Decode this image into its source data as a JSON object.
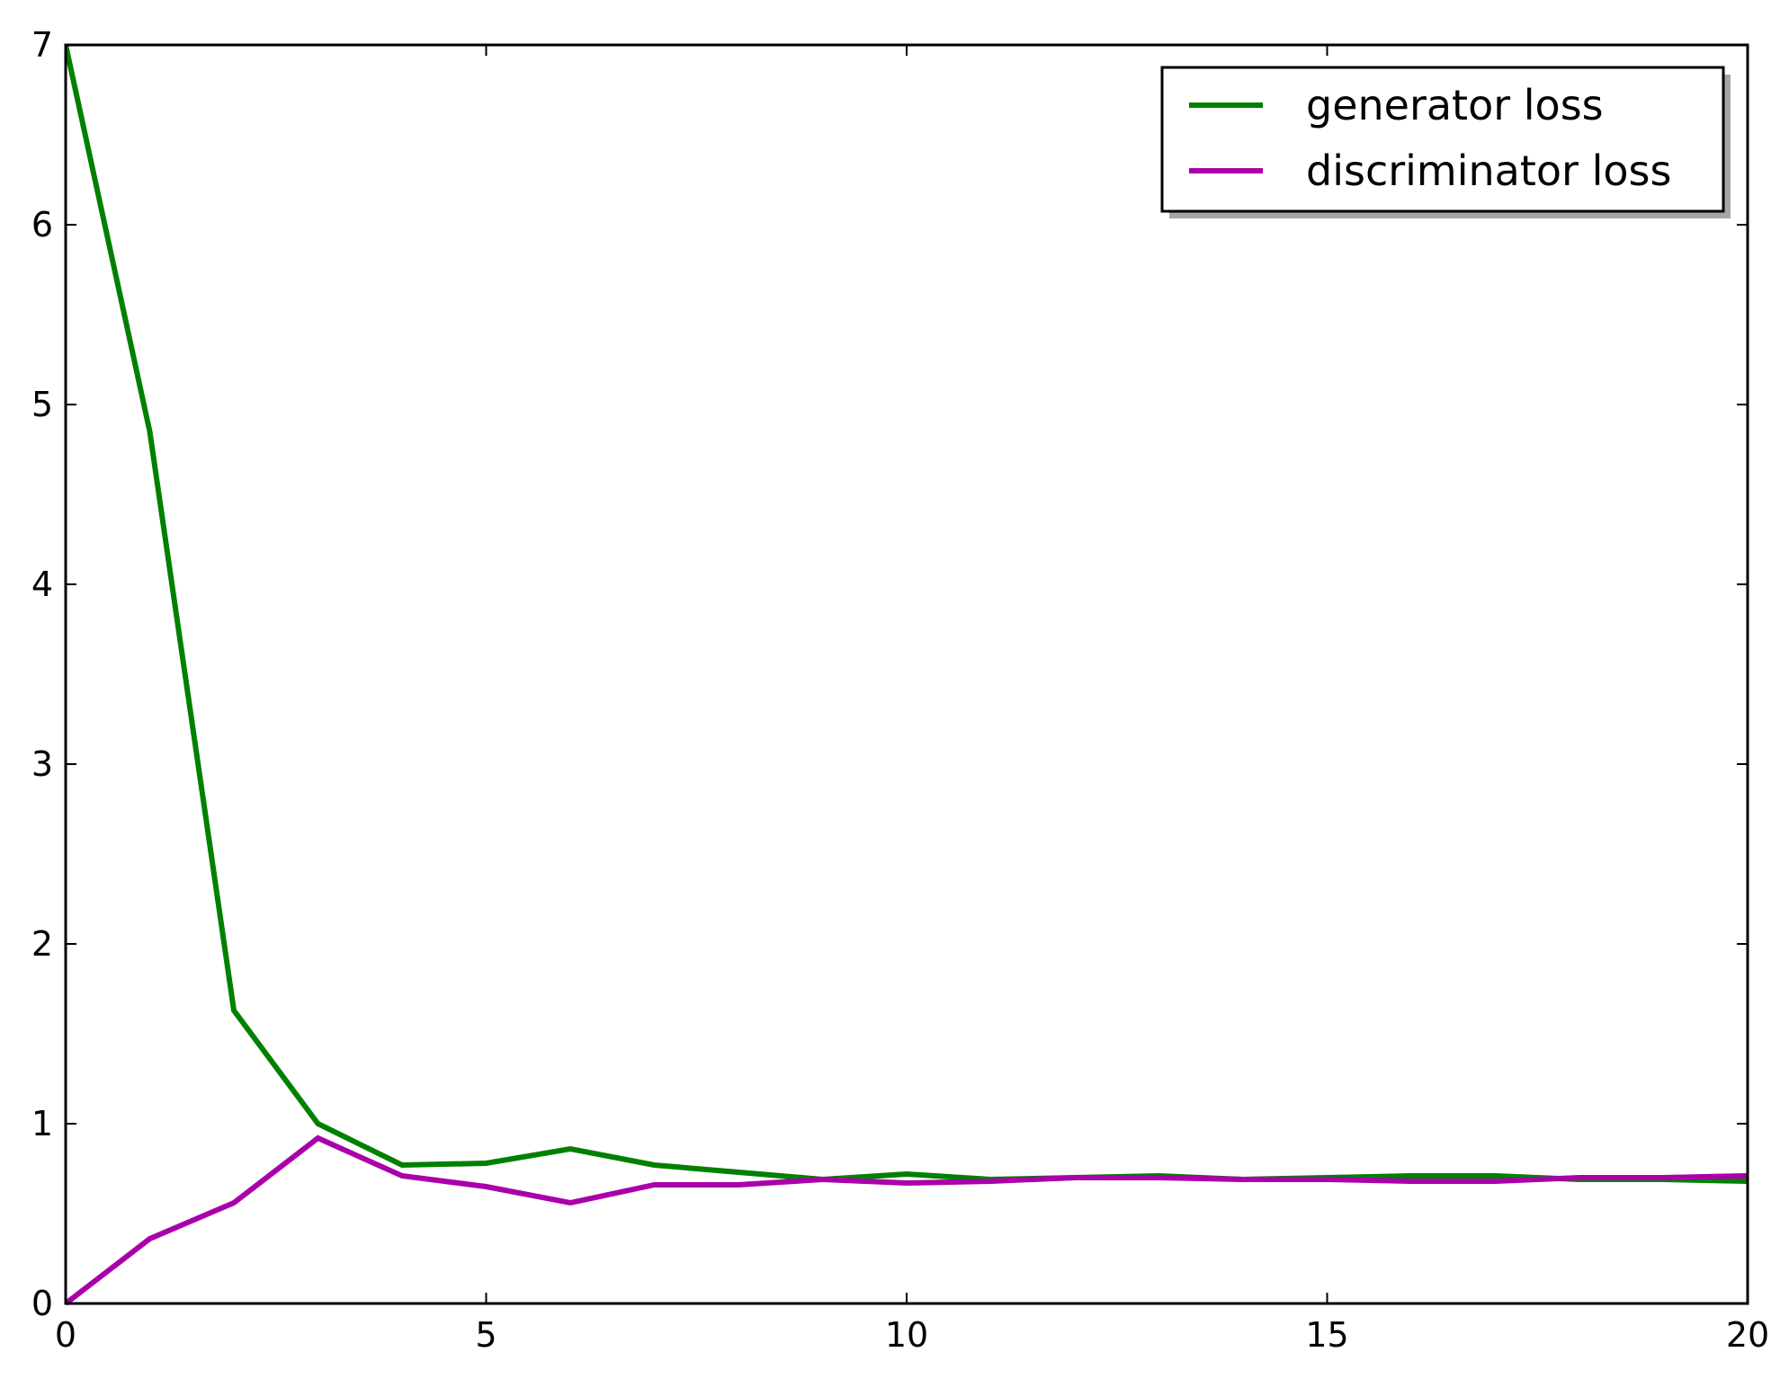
{
  "chart_data": {
    "type": "line",
    "title": "",
    "xlabel": "",
    "ylabel": "",
    "xlim": [
      0,
      20
    ],
    "ylim": [
      0,
      7
    ],
    "x_ticks": [
      0,
      5,
      10,
      15,
      20
    ],
    "y_ticks": [
      0,
      1,
      2,
      3,
      4,
      5,
      6,
      7
    ],
    "x_tick_labels": [
      "0",
      "5",
      "10",
      "15",
      "20"
    ],
    "y_tick_labels": [
      "0",
      "1",
      "2",
      "3",
      "4",
      "5",
      "6",
      "7"
    ],
    "grid": false,
    "legend_position": "top-right",
    "x": [
      0,
      1,
      2,
      3,
      4,
      5,
      6,
      7,
      8,
      9,
      10,
      11,
      12,
      13,
      14,
      15,
      16,
      17,
      18,
      19,
      20
    ],
    "series": [
      {
        "name": "generator loss",
        "color": "#008000",
        "values": [
          7.0,
          4.85,
          1.63,
          1.0,
          0.77,
          0.78,
          0.86,
          0.77,
          0.73,
          0.69,
          0.72,
          0.69,
          0.7,
          0.71,
          0.69,
          0.7,
          0.71,
          0.71,
          0.69,
          0.69,
          0.68
        ]
      },
      {
        "name": "discriminator loss",
        "color": "#aa00aa",
        "values": [
          0.0,
          0.36,
          0.56,
          0.92,
          0.71,
          0.65,
          0.56,
          0.66,
          0.66,
          0.69,
          0.67,
          0.68,
          0.7,
          0.7,
          0.69,
          0.69,
          0.68,
          0.68,
          0.7,
          0.7,
          0.71
        ]
      }
    ]
  }
}
